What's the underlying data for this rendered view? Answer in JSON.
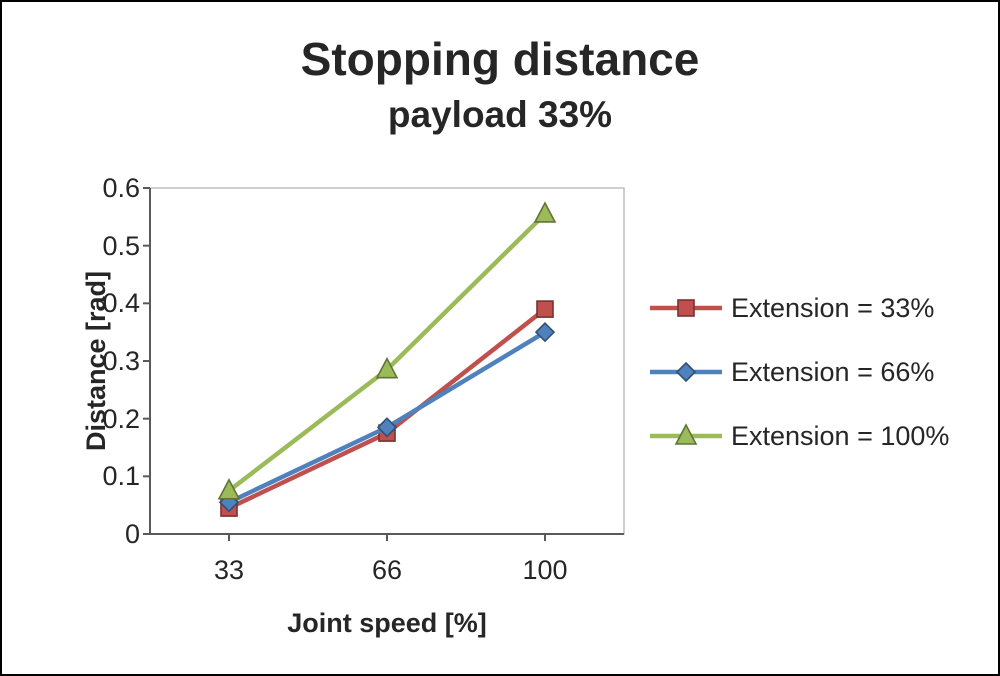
{
  "title": "Stopping distance",
  "subtitle": "payload 33%",
  "chart_data": {
    "type": "line",
    "x": [
      33,
      66,
      100
    ],
    "categories": [
      "33",
      "66",
      "100"
    ],
    "series": [
      {
        "name": "Extension = 33%",
        "color": "#C0504D",
        "marker": "square",
        "values": [
          0.045,
          0.175,
          0.39
        ]
      },
      {
        "name": "Extension = 66%",
        "color": "#4F81BD",
        "marker": "diamond",
        "values": [
          0.055,
          0.185,
          0.35
        ]
      },
      {
        "name": "Extension = 100%",
        "color": "#9BBB59",
        "marker": "triangle",
        "values": [
          0.075,
          0.285,
          0.555
        ]
      }
    ],
    "xlabel": "Joint speed [%]",
    "ylabel": "Distance [rad]",
    "ylim": [
      0,
      0.6
    ],
    "yticks": [
      0,
      0.1,
      0.2,
      0.3,
      0.4,
      0.5,
      0.6
    ],
    "ytick_labels": [
      "0",
      "0.1",
      "0.2",
      "0.3",
      "0.4",
      "0.5",
      "0.6"
    ],
    "xtick_labels": [
      "33",
      "66",
      "100"
    ],
    "grid": false,
    "legend_position": "right",
    "axis_color": "#595959",
    "plot_border_color": "#bfbfbf"
  }
}
